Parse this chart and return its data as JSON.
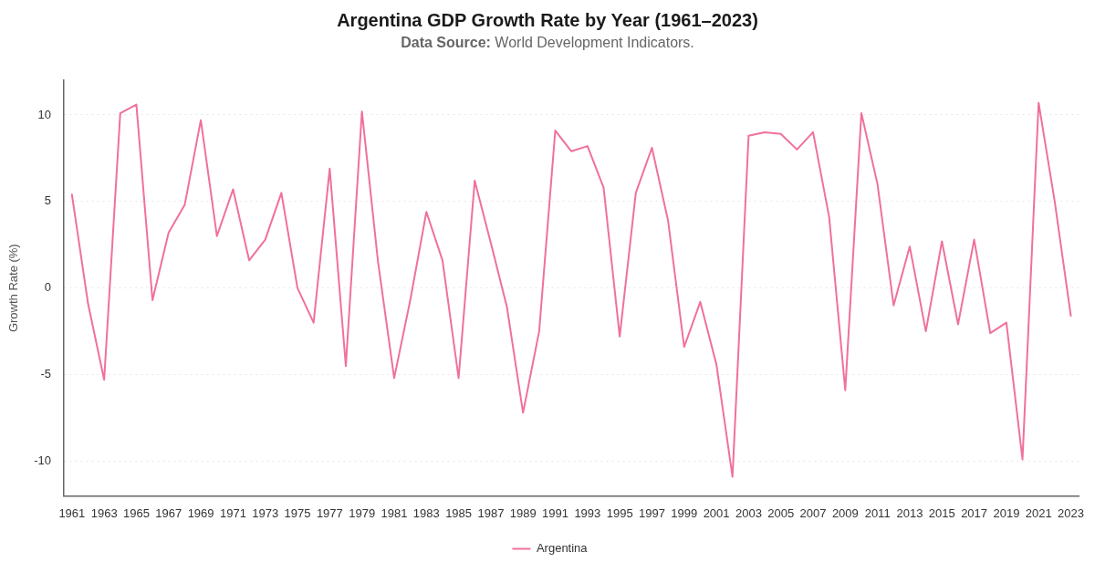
{
  "chart_data": {
    "type": "line",
    "title": "Argentina GDP Growth Rate by Year (1961–2023)",
    "subtitle": "Data Source: World Development Indicators.",
    "ylabel": "Growth Rate (%)",
    "categories": [
      "1961",
      null,
      "1963",
      null,
      "1965",
      null,
      "1967",
      null,
      "1969",
      null,
      "1971",
      null,
      "1973",
      null,
      "1975",
      null,
      "1977",
      null,
      "1979",
      null,
      "1981",
      null,
      "1983",
      null,
      "1985",
      null,
      "1987",
      null,
      "1989",
      null,
      "1991",
      null,
      "1993",
      null,
      "1995",
      null,
      "1997",
      null,
      "1999",
      null,
      "2001",
      null,
      "2003",
      null,
      "2005",
      null,
      "2007",
      null,
      "2009",
      null,
      "2011",
      null,
      "2013",
      null,
      "2015",
      null,
      "2017",
      null,
      "2019",
      null,
      "2021",
      null,
      "2023"
    ],
    "series": [
      {
        "name": "Argentina",
        "color": "#f0709e",
        "values": [
          5.4,
          -0.9,
          -5.3,
          10.1,
          10.6,
          -0.7,
          3.2,
          4.8,
          9.7,
          3.0,
          5.7,
          1.6,
          2.8,
          5.5,
          0.0,
          -2.0,
          6.9,
          -4.5,
          10.2,
          1.5,
          -5.2,
          -0.7,
          4.4,
          1.6,
          -5.2,
          6.2,
          2.6,
          -1.1,
          -7.2,
          -2.5,
          9.1,
          7.9,
          8.2,
          5.8,
          -2.8,
          5.5,
          8.1,
          3.9,
          -3.4,
          -0.8,
          -4.4,
          -10.9,
          8.8,
          9.0,
          8.9,
          8.0,
          9.0,
          4.1,
          -5.9,
          10.1,
          6.0,
          -1.0,
          2.4,
          -2.5,
          2.7,
          -2.1,
          2.8,
          -2.6,
          -2.0,
          -9.9,
          10.7,
          5.0,
          -1.6
        ]
      }
    ],
    "ylim": [
      -12,
      12
    ],
    "yticks": [
      -10,
      -5,
      0,
      5,
      10
    ],
    "grid": "y",
    "legend": "bottom"
  }
}
